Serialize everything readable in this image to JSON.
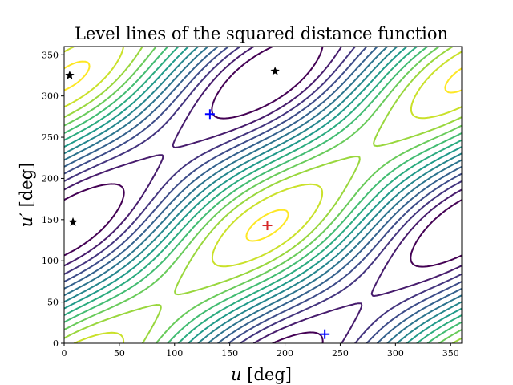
{
  "chart_data": {
    "type": "contour",
    "title": "Level lines of the squared distance function",
    "xlabel_var": "u",
    "xlabel_unit": "[deg]",
    "ylabel_var": "u′",
    "ylabel_unit": "[deg]",
    "xlim": [
      0,
      360
    ],
    "ylim": [
      0,
      360
    ],
    "xticks": [
      0,
      50,
      100,
      150,
      200,
      250,
      300,
      350
    ],
    "yticks": [
      0,
      50,
      100,
      150,
      200,
      250,
      300,
      350
    ],
    "grid": false,
    "colormap": "viridis",
    "minimum": {
      "u": 184,
      "v": 143,
      "marker": "plus",
      "color": "#d62728"
    },
    "stars": [
      {
        "u": 5,
        "v": 325
      },
      {
        "u": 191,
        "v": 330
      },
      {
        "u": 8,
        "v": 147
      }
    ],
    "plus_markers": [
      {
        "u": 132,
        "v": 278
      },
      {
        "u": 236,
        "v": 11
      }
    ],
    "marker_colors": {
      "star": "#000000",
      "plus": "#0000ff"
    }
  }
}
